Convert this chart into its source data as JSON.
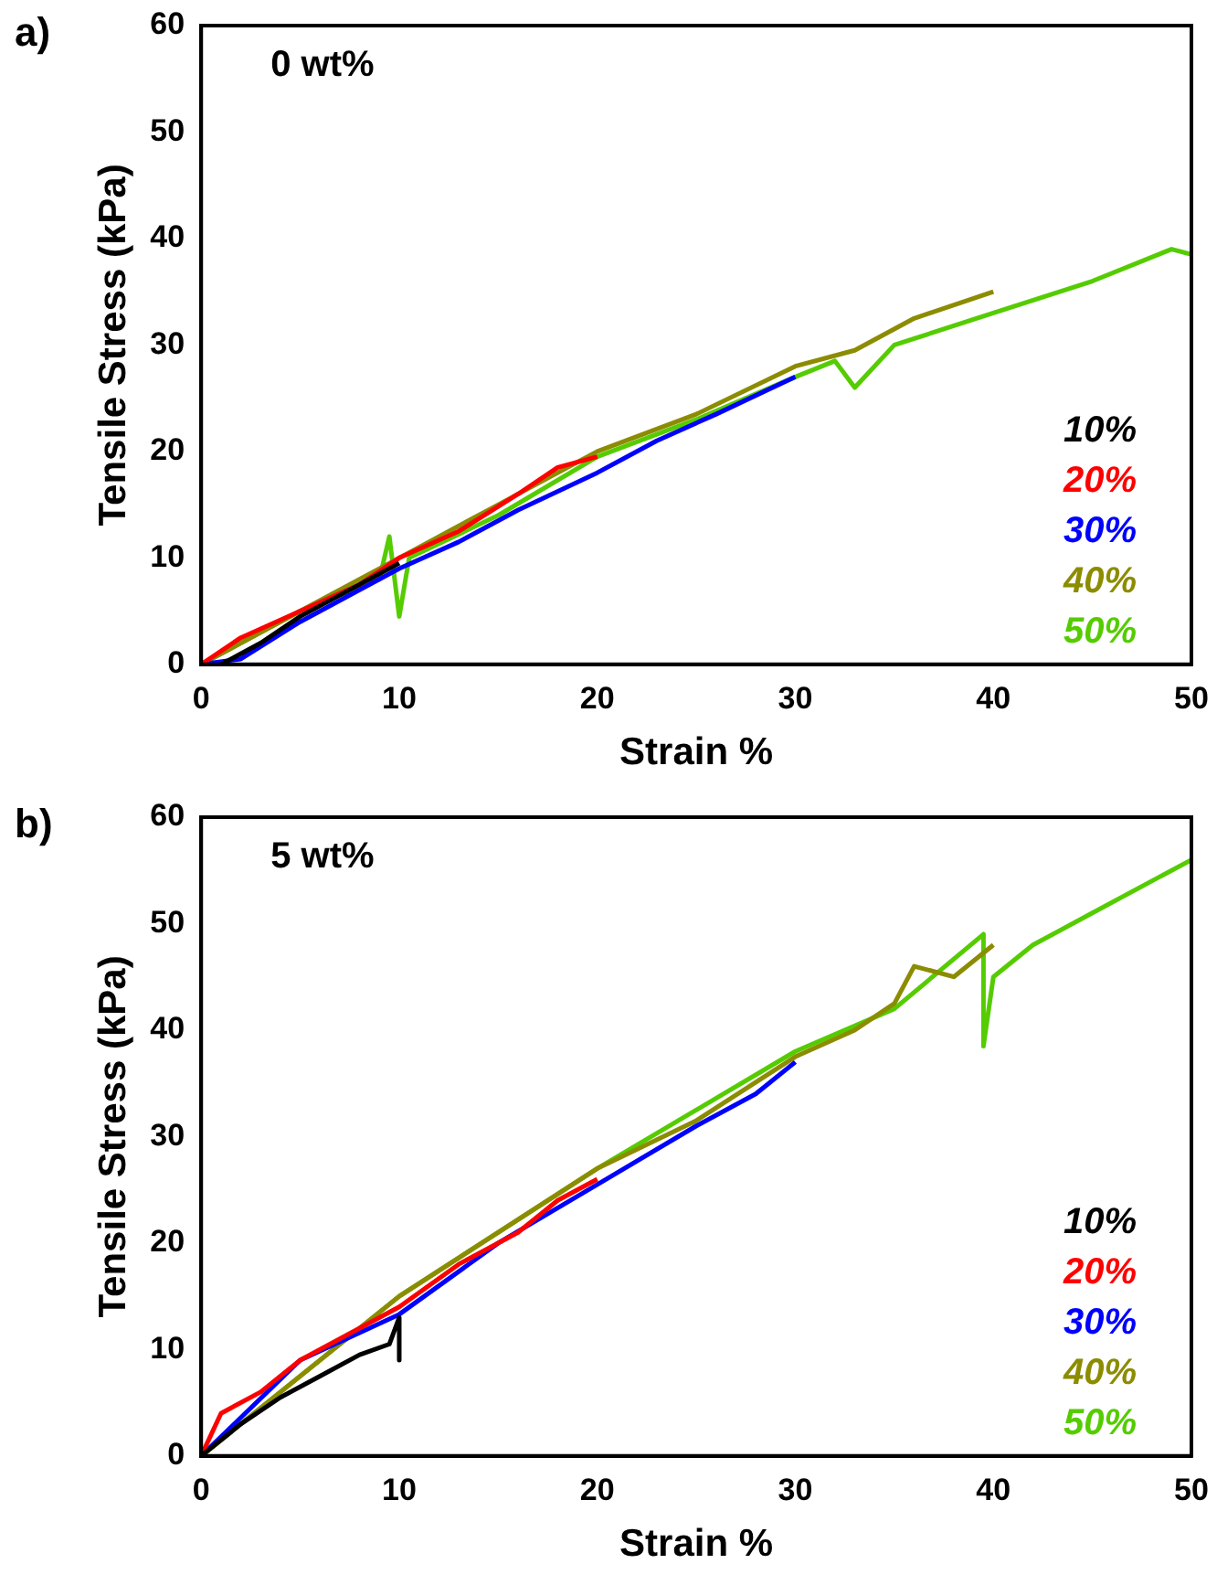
{
  "chart_data": [
    {
      "type": "line",
      "title": "a)",
      "annotations": [
        "0 wt%"
      ],
      "xlabel": "Strain %",
      "ylabel": "Tensile Stress (kPa)",
      "xlim": [
        0,
        50
      ],
      "ylim": [
        0,
        60
      ],
      "xticks": [
        0,
        10,
        20,
        30,
        40,
        50
      ],
      "yticks": [
        0,
        10,
        20,
        30,
        40,
        50,
        60
      ],
      "grid": false,
      "legend": "right",
      "marker": "none",
      "line_style": "solid",
      "series": [
        {
          "name": "10%",
          "color": "#000000",
          "x": [
            1,
            3,
            5,
            7,
            9,
            10
          ],
          "values": [
            0,
            2,
            4.5,
            6.5,
            8.5,
            9.5
          ]
        },
        {
          "name": "20%",
          "color": "#ff0000",
          "x": [
            0,
            2,
            5,
            8,
            10,
            13,
            16,
            18,
            20
          ],
          "values": [
            0,
            2.5,
            5,
            7.5,
            10,
            12.5,
            16,
            18.5,
            19.5
          ]
        },
        {
          "name": "30%",
          "color": "#0000ff",
          "x": [
            0,
            2,
            5,
            8,
            10,
            13,
            16,
            20,
            23,
            26,
            30
          ],
          "values": [
            0,
            0.5,
            4,
            7,
            9,
            11.5,
            14.5,
            18,
            21,
            23.5,
            27
          ]
        },
        {
          "name": "40%",
          "color": "#8c8c00",
          "x": [
            0,
            5,
            10,
            15,
            20,
            25,
            30,
            33,
            36,
            40
          ],
          "values": [
            0,
            5,
            10,
            15,
            20,
            23.5,
            28,
            29.5,
            32.5,
            35
          ]
        },
        {
          "name": "50%",
          "color": "#55cc00",
          "x": [
            0,
            5,
            9,
            9.5,
            10,
            10.5,
            15,
            20,
            25,
            30,
            32,
            33,
            35,
            40,
            45,
            49,
            50
          ],
          "values": [
            0,
            5,
            8,
            12,
            4.5,
            10,
            14,
            19.5,
            23,
            27,
            28.5,
            26,
            30,
            33,
            36,
            39,
            38.5
          ]
        }
      ]
    },
    {
      "type": "line",
      "title": "b)",
      "annotations": [
        "5 wt%"
      ],
      "xlabel": "Strain %",
      "ylabel": "Tensile Stress (kPa)",
      "xlim": [
        0,
        50
      ],
      "ylim": [
        0,
        60
      ],
      "xticks": [
        0,
        10,
        20,
        30,
        40,
        50
      ],
      "yticks": [
        0,
        10,
        20,
        30,
        40,
        50,
        60
      ],
      "grid": false,
      "legend": "right",
      "marker": "none",
      "line_style": "solid",
      "series": [
        {
          "name": "10%",
          "color": "#000000",
          "x": [
            0,
            2,
            4,
            6,
            8,
            9.5,
            10,
            10
          ],
          "values": [
            0,
            3,
            5.5,
            7.5,
            9.5,
            10.5,
            13,
            9
          ]
        },
        {
          "name": "20%",
          "color": "#ff0000",
          "x": [
            0,
            1,
            3,
            5,
            8,
            10,
            13,
            16,
            18,
            20
          ],
          "values": [
            0,
            4,
            6,
            9,
            12,
            14,
            18,
            21,
            24,
            26
          ]
        },
        {
          "name": "30%",
          "color": "#0000ff",
          "x": [
            0,
            5,
            10,
            15,
            20,
            25,
            28,
            30
          ],
          "values": [
            0,
            9,
            13.3,
            20,
            25.5,
            31,
            34,
            37
          ]
        },
        {
          "name": "40%",
          "color": "#8c8c00",
          "x": [
            0,
            10,
            20,
            25,
            30,
            33,
            35,
            36,
            38,
            40
          ],
          "values": [
            0,
            15,
            27,
            31.5,
            37.5,
            40,
            42.5,
            46,
            45,
            48
          ]
        },
        {
          "name": "50%",
          "color": "#55cc00",
          "x": [
            0,
            10,
            20,
            30,
            35,
            39.5,
            39.5,
            40,
            42,
            45,
            50
          ],
          "values": [
            0,
            15,
            27,
            38,
            42,
            49,
            38.5,
            45,
            48,
            51,
            56
          ]
        }
      ]
    }
  ]
}
